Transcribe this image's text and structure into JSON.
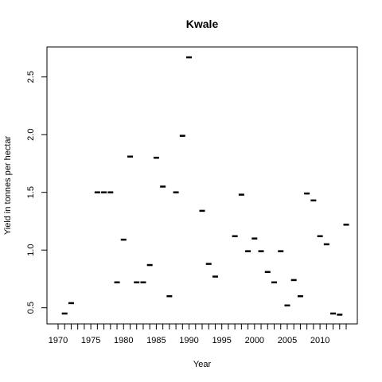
{
  "chart_data": {
    "type": "scatter",
    "title": "Kwale",
    "xlabel": "Year",
    "ylabel": "Yield in tonnes per hectar",
    "marker": "horizontal-dash",
    "grid": false,
    "legend": "none",
    "xlim": [
      1968.3,
      2015.7
    ],
    "ylim": [
      0.36,
      2.76
    ],
    "x_ticks": [
      1970,
      1975,
      1980,
      1985,
      1990,
      1995,
      2000,
      2005,
      2010
    ],
    "x_tick_labels": [
      "1970",
      "1975",
      "1980",
      "1985",
      "1990",
      "1995",
      "2000",
      "2005",
      "2010"
    ],
    "x_minor_ticks": [
      1970,
      1971,
      1972,
      1973,
      1974,
      1975,
      1976,
      1977,
      1978,
      1979,
      1980,
      1981,
      1982,
      1983,
      1984,
      1985,
      1986,
      1987,
      1988,
      1989,
      1990,
      1991,
      1992,
      1993,
      1994,
      1995,
      1996,
      1997,
      1998,
      1999,
      2000,
      2001,
      2002,
      2003,
      2004,
      2005,
      2006,
      2007,
      2008,
      2009,
      2010,
      2011,
      2012,
      2013,
      2014
    ],
    "y_ticks": [
      0.5,
      1.0,
      1.5,
      2.0,
      2.5
    ],
    "y_tick_labels": [
      "0.5",
      "1.0",
      "1.5",
      "2.0",
      "2.5"
    ],
    "points": [
      {
        "x": 1971,
        "y": 0.45
      },
      {
        "x": 1972,
        "y": 0.54
      },
      {
        "x": 1976,
        "y": 1.5
      },
      {
        "x": 1977,
        "y": 1.5
      },
      {
        "x": 1978,
        "y": 1.5
      },
      {
        "x": 1979,
        "y": 0.72
      },
      {
        "x": 1980,
        "y": 1.09
      },
      {
        "x": 1981,
        "y": 1.81
      },
      {
        "x": 1982,
        "y": 0.72
      },
      {
        "x": 1983,
        "y": 0.72
      },
      {
        "x": 1984,
        "y": 0.87
      },
      {
        "x": 1985,
        "y": 1.8
      },
      {
        "x": 1986,
        "y": 1.55
      },
      {
        "x": 1987,
        "y": 0.6
      },
      {
        "x": 1988,
        "y": 1.5
      },
      {
        "x": 1989,
        "y": 1.99
      },
      {
        "x": 1990,
        "y": 2.67
      },
      {
        "x": 1992,
        "y": 1.34
      },
      {
        "x": 1993,
        "y": 0.88
      },
      {
        "x": 1994,
        "y": 0.77
      },
      {
        "x": 1997,
        "y": 1.12
      },
      {
        "x": 1998,
        "y": 1.48
      },
      {
        "x": 1999,
        "y": 0.99
      },
      {
        "x": 2000,
        "y": 1.1
      },
      {
        "x": 2001,
        "y": 0.99
      },
      {
        "x": 2002,
        "y": 0.81
      },
      {
        "x": 2003,
        "y": 0.72
      },
      {
        "x": 2004,
        "y": 0.99
      },
      {
        "x": 2005,
        "y": 0.52
      },
      {
        "x": 2006,
        "y": 0.74
      },
      {
        "x": 2007,
        "y": 0.6
      },
      {
        "x": 2008,
        "y": 1.49
      },
      {
        "x": 2009,
        "y": 1.43
      },
      {
        "x": 2010,
        "y": 1.12
      },
      {
        "x": 2011,
        "y": 1.05
      },
      {
        "x": 2012,
        "y": 0.45
      },
      {
        "x": 2013,
        "y": 0.44
      },
      {
        "x": 2014,
        "y": 1.22
      }
    ]
  }
}
